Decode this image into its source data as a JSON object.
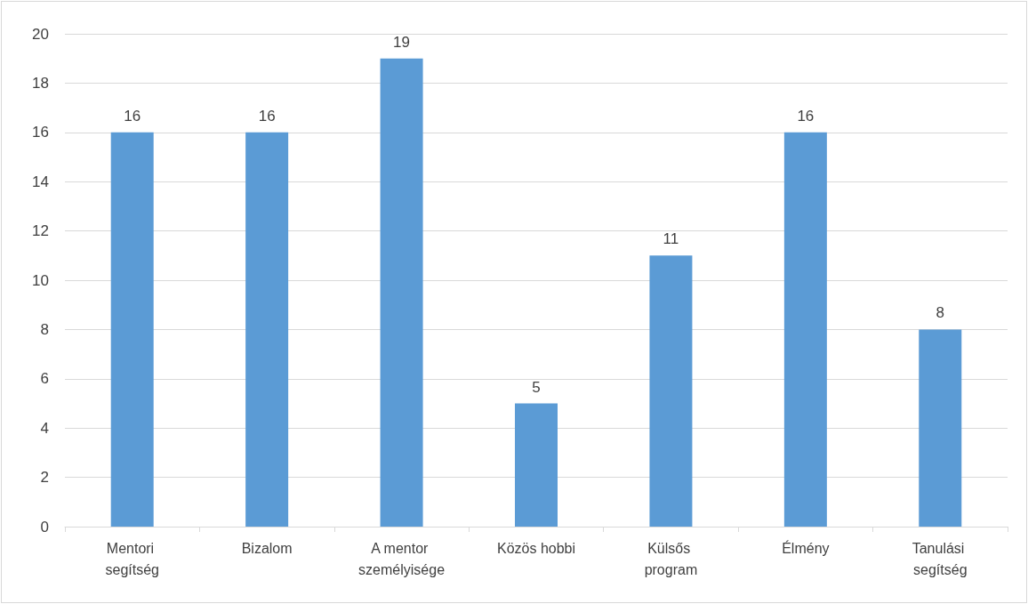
{
  "chart_data": {
    "type": "bar",
    "categories": [
      "Mentori segítség",
      "Bizalom",
      "A mentor személyisége",
      "Közös hobbi",
      "Külsős program",
      "Élmény",
      "Tanulási segítség"
    ],
    "values": [
      16,
      16,
      19,
      5,
      11,
      16,
      8
    ],
    "color": "#5b9bd5",
    "ylim": [
      0,
      20
    ],
    "yticks": [
      0,
      2,
      4,
      6,
      8,
      10,
      12,
      14,
      16,
      18,
      20
    ],
    "grid": "y",
    "data_labels": true
  }
}
